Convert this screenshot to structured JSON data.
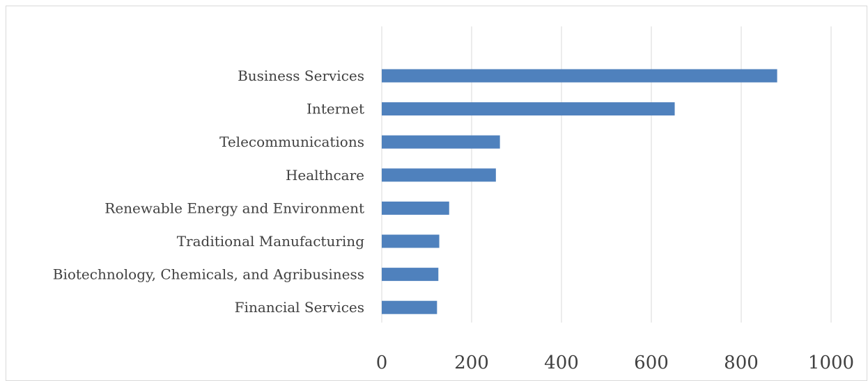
{
  "chart_data": {
    "type": "bar",
    "orientation": "horizontal",
    "categories": [
      "Business Services",
      "Internet",
      "Telecommunications",
      "Healthcare",
      "Renewable Energy and Environment",
      "Traditional Manufacturing",
      "Biotechnology, Chemicals, and Agribusiness",
      "Financial Services"
    ],
    "values": [
      880,
      652,
      263,
      254,
      150,
      128,
      126,
      123
    ],
    "xlim": [
      0,
      1000
    ],
    "x_ticks": [
      "0",
      "200",
      "400",
      "600",
      "800",
      "1000"
    ],
    "grid": "vertical",
    "legend": "none",
    "title": "",
    "xlabel": "",
    "ylabel": "",
    "bar_color": "#4f81bd",
    "grid_color": "#d9d9d9"
  }
}
